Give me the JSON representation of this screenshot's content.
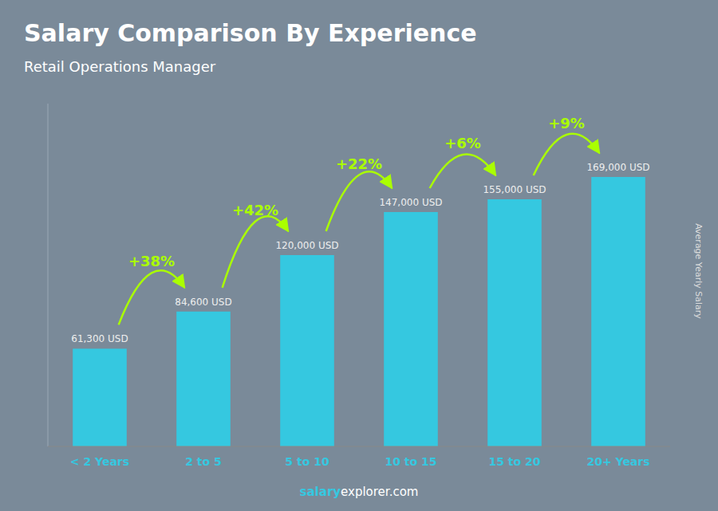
{
  "chart_data": {
    "type": "bar",
    "title": "Salary Comparison By Experience",
    "subtitle": "Retail Operations Manager",
    "ylabel": "Average Yearly Salary",
    "categories": [
      "< 2 Years",
      "2 to 5",
      "5 to 10",
      "10 to 15",
      "15 to 20",
      "20+ Years"
    ],
    "values": [
      61300,
      84600,
      120000,
      147000,
      155000,
      169000
    ],
    "value_labels": [
      "61,300 USD",
      "84,600 USD",
      "120,000 USD",
      "147,000 USD",
      "155,000 USD",
      "169,000 USD"
    ],
    "data_labels": true,
    "annotations": [
      "+38%",
      "+42%",
      "+22%",
      "+6%",
      "+9%"
    ],
    "watermark": [
      "salary",
      "explorer.com"
    ],
    "color": "#35c8e0",
    "ylim": [
      0,
      215000
    ],
    "yticks": [],
    "tick_labels": "x",
    "grid": false
  }
}
